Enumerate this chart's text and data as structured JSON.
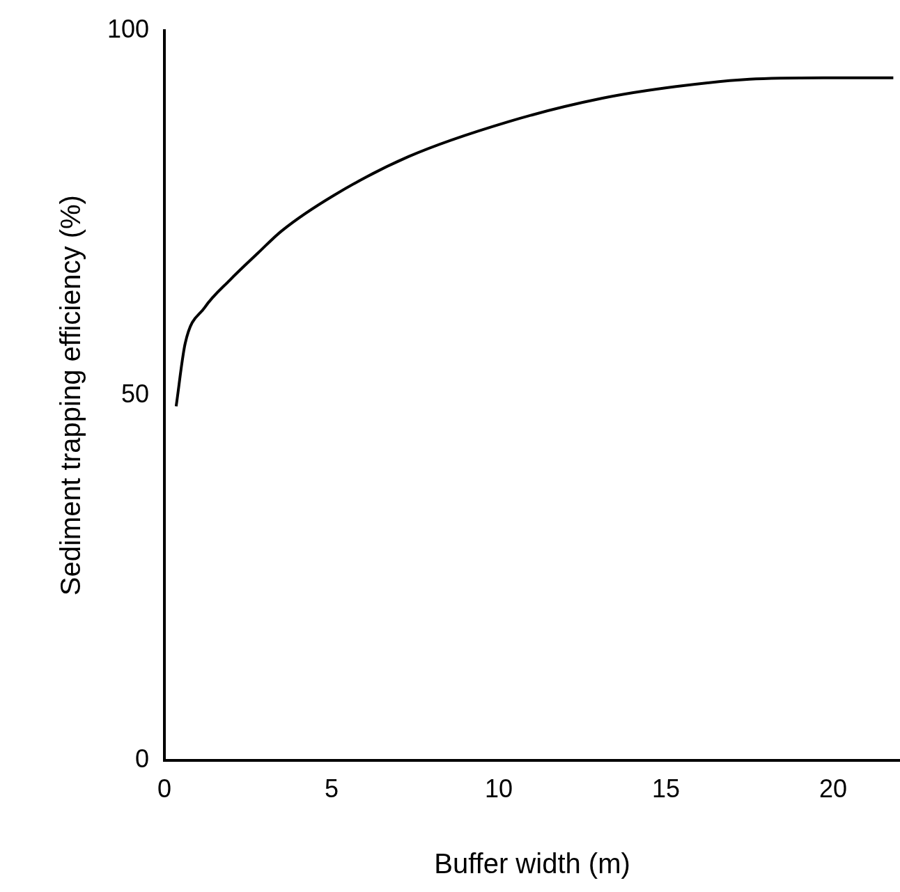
{
  "chart_data": {
    "type": "line",
    "xlabel": "Buffer width (m)",
    "ylabel": "Sediment trapping efficiency (%)",
    "x": [
      0.35,
      0.62,
      1.2,
      1.96,
      2.8,
      3.5,
      5.07,
      7.3,
      10.3,
      13.1,
      15.3,
      17.5,
      19.7,
      21.8
    ],
    "series": [
      {
        "color": "#000000",
        "values": [
          48.5,
          57.1,
          62,
          65.8,
          69.5,
          72.5,
          77.4,
          82.7,
          87.5,
          90.7,
          92.3,
          93.3,
          93.5,
          93.5
        ]
      }
    ],
    "xlim": [
      0,
      22
    ],
    "xticks": [
      0,
      5,
      10,
      15,
      20
    ],
    "ylim": [
      0,
      100
    ],
    "yticks": [
      0,
      50,
      100
    ],
    "grid": false,
    "legend": false,
    "marker": "none",
    "line_style": "solid"
  }
}
